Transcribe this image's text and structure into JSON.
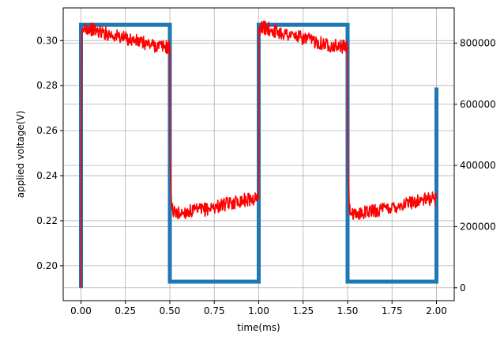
{
  "chart_data": {
    "type": "line",
    "title": "",
    "xlabel": "time(ms)",
    "ylabel_left": "applied voltage(V)",
    "ylabel_right": "",
    "xlim": [
      -0.1,
      2.1
    ],
    "ylim_left": [
      0.1845,
      0.3145
    ],
    "ylim_right": [
      -42000,
      915000
    ],
    "x_ticks": [
      "0.00",
      "0.25",
      "0.50",
      "0.75",
      "1.00",
      "1.25",
      "1.50",
      "1.75",
      "2.00"
    ],
    "x_tick_values": [
      0.0,
      0.25,
      0.5,
      0.75,
      1.0,
      1.25,
      1.5,
      1.75,
      2.0
    ],
    "y_left_ticks": [
      "0.20",
      "0.22",
      "0.24",
      "0.26",
      "0.28",
      "0.30"
    ],
    "y_left_tick_values": [
      0.2,
      0.22,
      0.24,
      0.26,
      0.28,
      0.3
    ],
    "y_right_ticks": [
      "0",
      "200000",
      "400000",
      "600000",
      "800000"
    ],
    "y_right_tick_values": [
      0,
      200000,
      400000,
      600000,
      800000
    ],
    "grid": true,
    "series": [
      {
        "axis": "right",
        "color": "#1f77b4",
        "x": [
          0.0,
          0.0,
          0.5,
          0.5,
          1.0,
          1.0,
          1.5,
          1.5,
          2.0,
          2.0
        ],
        "values": [
          0,
          860000,
          860000,
          20000,
          20000,
          860000,
          860000,
          20000,
          20000,
          655000
        ]
      },
      {
        "axis": "left",
        "color": "#ff0000",
        "x": [
          0.0,
          0.005,
          0.02,
          0.1,
          0.2,
          0.3,
          0.4,
          0.5,
          0.502,
          0.51,
          0.53,
          0.6,
          0.7,
          0.8,
          0.9,
          1.0,
          1.001,
          1.02,
          1.1,
          1.2,
          1.3,
          1.4,
          1.5,
          1.502,
          1.51,
          1.53,
          1.6,
          1.7,
          1.8,
          1.9,
          2.0
        ],
        "values": [
          0.19,
          0.302,
          0.306,
          0.304,
          0.302,
          0.3,
          0.298,
          0.297,
          0.245,
          0.226,
          0.223,
          0.224,
          0.225,
          0.227,
          0.229,
          0.23,
          0.305,
          0.306,
          0.304,
          0.302,
          0.3,
          0.298,
          0.297,
          0.245,
          0.226,
          0.222,
          0.224,
          0.225,
          0.227,
          0.229,
          0.23
        ]
      }
    ]
  }
}
